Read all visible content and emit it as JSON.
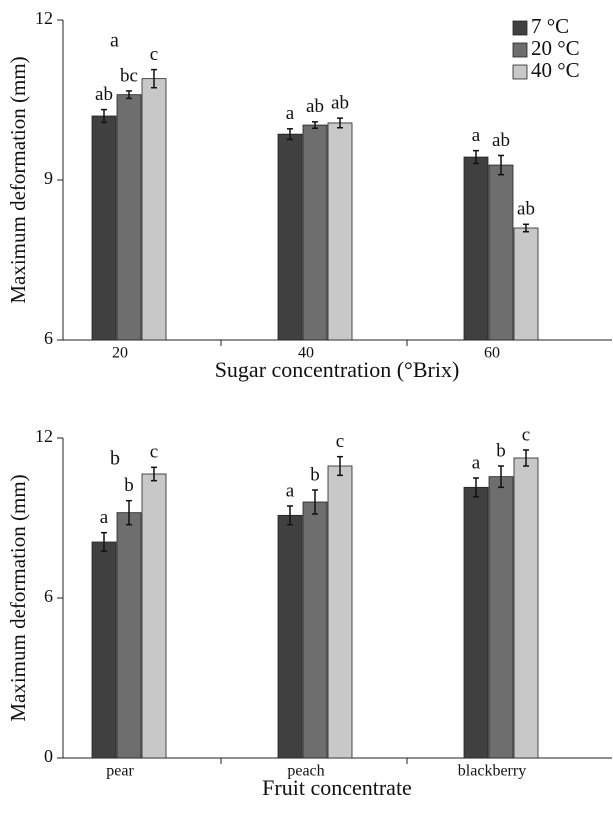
{
  "chart_data": [
    {
      "type": "bar",
      "panel_label": "a",
      "ylabel": "Maximum deformation (mm)",
      "xlabel": "Sugar concentration (°Brix)",
      "categories": [
        "20",
        "40",
        "60"
      ],
      "ylim": [
        6,
        12
      ],
      "yticks": [
        6,
        9,
        12
      ],
      "legend": "top-right",
      "series": [
        {
          "name": "7 °C",
          "color": "#404040",
          "values": [
            10.2,
            9.86,
            9.43
          ],
          "errors": [
            0.12,
            0.1,
            0.12
          ],
          "bar_labels": [
            "ab",
            "a",
            "a"
          ]
        },
        {
          "name": "20 °C",
          "color": "#6e6e6e",
          "values": [
            10.6,
            10.03,
            9.28
          ],
          "errors": [
            0.07,
            0.06,
            0.18
          ],
          "bar_labels": [
            "bc",
            "ab",
            "ab"
          ]
        },
        {
          "name": "40 °C",
          "color": "#c8c8c8",
          "values": [
            10.9,
            10.07,
            8.1
          ],
          "errors": [
            0.17,
            0.09,
            0.07
          ],
          "bar_labels": [
            "c",
            "ab",
            "ab"
          ]
        }
      ]
    },
    {
      "type": "bar",
      "panel_label": "b",
      "ylabel": "Maximum deformation (mm)",
      "xlabel": "Fruit concentrate",
      "categories": [
        "pear",
        "peach",
        "blackberry"
      ],
      "ylim": [
        0,
        12
      ],
      "yticks": [
        0,
        6,
        12
      ],
      "series": [
        {
          "color": "#404040",
          "values": [
            8.1,
            9.1,
            10.15
          ],
          "errors": [
            0.35,
            0.35,
            0.35
          ],
          "bar_labels": [
            "a",
            "a",
            "a"
          ]
        },
        {
          "color": "#6e6e6e",
          "values": [
            9.2,
            9.6,
            10.55
          ],
          "errors": [
            0.45,
            0.45,
            0.4
          ],
          "bar_labels": [
            "b",
            "b",
            "b"
          ]
        },
        {
          "color": "#c8c8c8",
          "values": [
            10.65,
            10.95,
            11.25
          ],
          "errors": [
            0.25,
            0.35,
            0.3
          ],
          "bar_labels": [
            "c",
            "c",
            "c"
          ]
        }
      ]
    }
  ]
}
